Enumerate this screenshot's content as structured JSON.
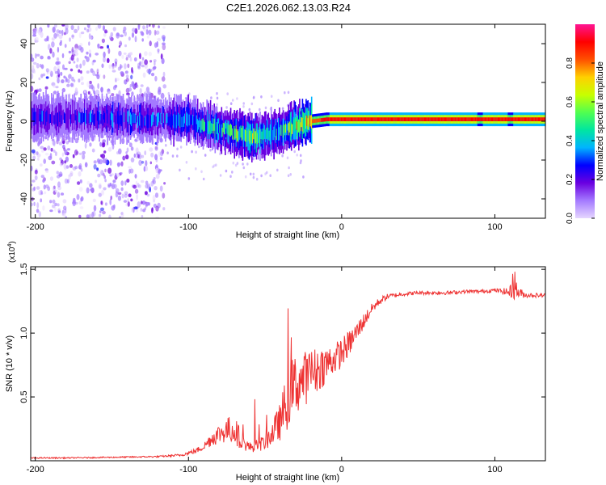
{
  "title": "C2E1.2026.062.13.03.R24",
  "chart_data": [
    {
      "type": "heatmap",
      "xlabel": "Height of straight line (km)",
      "ylabel": "Frequency (Hz)",
      "xlim": [
        -203,
        133
      ],
      "ylim": [
        -50,
        50
      ],
      "xticks": [
        -200,
        -100,
        0,
        100
      ],
      "xtick_labels": [
        "-200",
        "-100",
        "0",
        "100"
      ],
      "yticks": [
        -40,
        -20,
        0,
        20,
        40
      ],
      "ytick_labels": [
        "-40",
        "-20",
        "0",
        "20",
        "40"
      ],
      "colorbar": {
        "label": "Normalized spectral amplitude",
        "range": [
          0,
          1
        ],
        "ticks": [
          0.0,
          0.2,
          0.4,
          0.6,
          0.8
        ],
        "tick_labels": [
          "0.0",
          "0.2",
          "0.4",
          "0.6",
          "0.8"
        ],
        "colormap": [
          "#e6d6ff",
          "#a47aff",
          "#6a00e0",
          "#0000ff",
          "#00b4ff",
          "#00e6a0",
          "#50ff50",
          "#c8ff00",
          "#ffd000",
          "#ff5000",
          "#ff0000",
          "#ff1493"
        ]
      },
      "ridge": {
        "x": [
          -200,
          -180,
          -160,
          -140,
          -120,
          -100,
          -90,
          -80,
          -70,
          -60,
          -50,
          -40,
          -30,
          -20,
          -10,
          0,
          20,
          40,
          60,
          80,
          90,
          100,
          110,
          120,
          133
        ],
        "freq": [
          2,
          2,
          2,
          1,
          1,
          1,
          -2,
          -4,
          -6,
          -8,
          -7,
          -5,
          -2,
          0,
          1,
          1,
          1,
          1,
          1,
          1,
          1,
          1,
          1,
          1,
          1
        ],
        "amplitude": [
          0.25,
          0.25,
          0.28,
          0.3,
          0.3,
          0.35,
          0.4,
          0.45,
          0.5,
          0.55,
          0.5,
          0.45,
          0.6,
          0.8,
          0.9,
          0.95,
          0.95,
          0.95,
          0.95,
          0.95,
          0.9,
          0.95,
          0.9,
          0.95,
          0.95
        ]
      },
      "noise_region_x": [
        -203,
        -115
      ]
    },
    {
      "type": "line",
      "xlabel": "Height of straight line (km)",
      "ylabel": "SNR (10 * v/v)",
      "multiplier_label": "(x10",
      "multiplier_exp": "4",
      "multiplier_close": ")",
      "xlim": [
        -203,
        133
      ],
      "ylim": [
        0,
        1.52
      ],
      "xticks": [
        -200,
        -100,
        0,
        100
      ],
      "xtick_labels": [
        "-200",
        "-100",
        "0",
        "100"
      ],
      "yticks": [
        0.5,
        1.0,
        1.5
      ],
      "ytick_labels": [
        "0.5",
        "1.0",
        "1.5"
      ],
      "line_color": "#ee3333",
      "series": [
        {
          "name": "SNR",
          "x": [
            -203,
            -180,
            -150,
            -120,
            -105,
            -95,
            -90,
            -85,
            -80,
            -75,
            -70,
            -65,
            -60,
            -55,
            -50,
            -45,
            -40,
            -35,
            -30,
            -25,
            -20,
            -15,
            -10,
            -5,
            0,
            5,
            10,
            15,
            20,
            25,
            30,
            40,
            50,
            60,
            70,
            80,
            90,
            100,
            105,
            110,
            112,
            115,
            120,
            133
          ],
          "y": [
            0.02,
            0.02,
            0.025,
            0.03,
            0.04,
            0.07,
            0.1,
            0.15,
            0.18,
            0.2,
            0.2,
            0.12,
            0.09,
            0.1,
            0.12,
            0.18,
            0.25,
            0.4,
            0.5,
            0.55,
            0.6,
            0.65,
            0.7,
            0.75,
            0.8,
            0.88,
            0.98,
            1.08,
            1.18,
            1.24,
            1.28,
            1.3,
            1.31,
            1.31,
            1.31,
            1.32,
            1.32,
            1.33,
            1.32,
            1.3,
            1.35,
            1.3,
            1.29,
            1.29
          ],
          "jitter": [
            0.005,
            0.005,
            0.005,
            0.006,
            0.01,
            0.02,
            0.03,
            0.06,
            0.08,
            0.1,
            0.12,
            0.06,
            0.04,
            0.05,
            0.06,
            0.1,
            0.15,
            0.25,
            0.25,
            0.22,
            0.2,
            0.18,
            0.15,
            0.12,
            0.12,
            0.1,
            0.08,
            0.06,
            0.04,
            0.03,
            0.02,
            0.015,
            0.015,
            0.015,
            0.015,
            0.015,
            0.015,
            0.015,
            0.02,
            0.05,
            0.15,
            0.05,
            0.02,
            0.015
          ]
        }
      ]
    }
  ]
}
